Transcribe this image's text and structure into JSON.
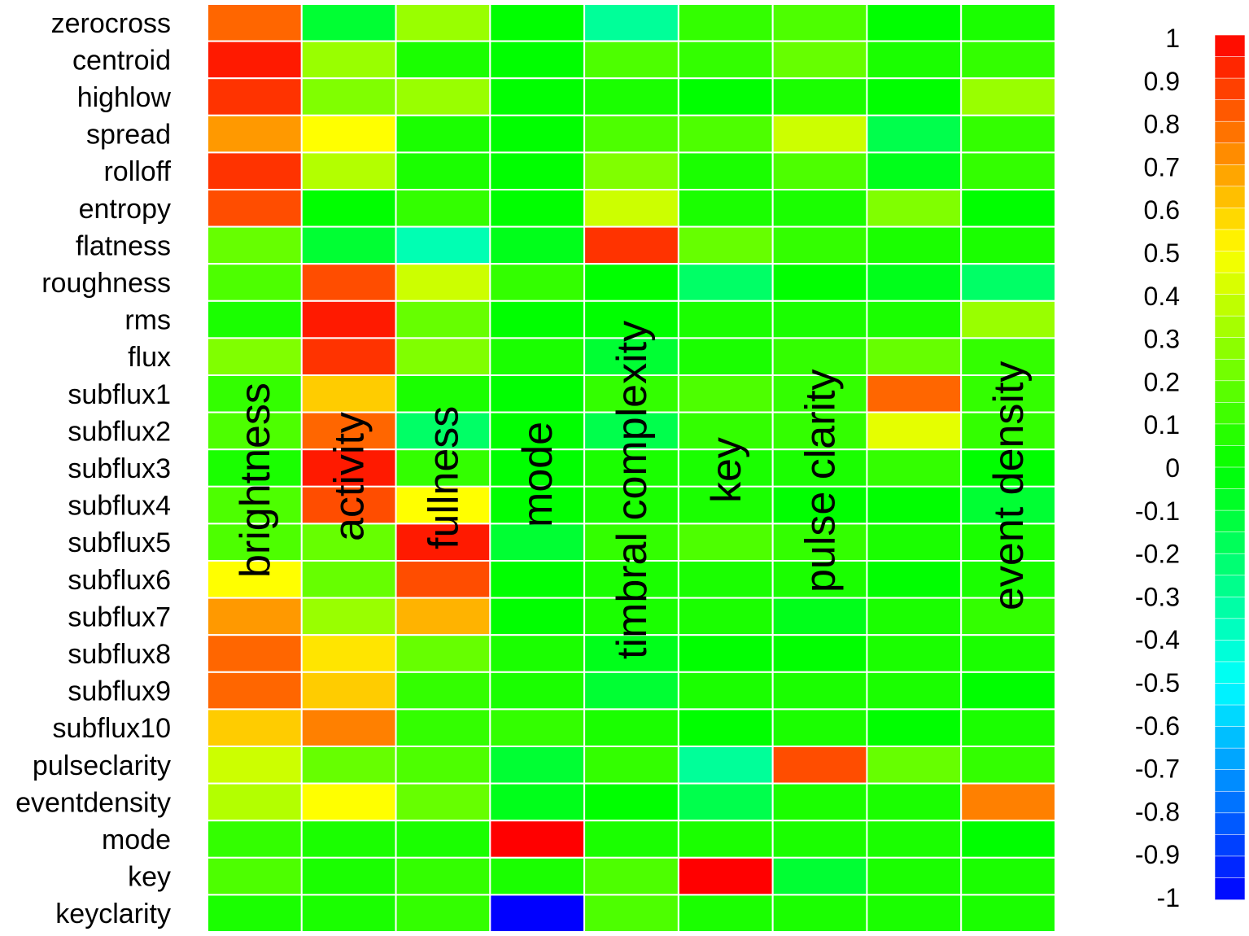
{
  "chart_data": {
    "type": "heatmap",
    "rows": [
      "zerocross",
      "centroid",
      "highlow",
      "spread",
      "rolloff",
      "entropy",
      "flatness",
      "roughness",
      "rms",
      "flux",
      "subflux1",
      "subflux2",
      "subflux3",
      "subflux4",
      "subflux5",
      "subflux6",
      "subflux7",
      "subflux8",
      "subflux9",
      "subflux10",
      "pulseclarity",
      "eventdensity",
      "mode",
      "key",
      "keyclarity"
    ],
    "columns": [
      "brightness",
      "activity",
      "fullness",
      "mode",
      "timbral complexity",
      "key",
      "pulse clarity",
      "",
      "event density"
    ],
    "values": [
      [
        0.8,
        -0.1,
        0.3,
        0.0,
        -0.3,
        0.1,
        0.15,
        0.0,
        0.05
      ],
      [
        0.95,
        0.3,
        0.05,
        0.0,
        0.15,
        0.1,
        0.2,
        0.05,
        0.1
      ],
      [
        0.9,
        0.25,
        0.3,
        0.0,
        0.05,
        0.0,
        0.05,
        0.0,
        0.3
      ],
      [
        0.7,
        0.5,
        0.05,
        0.0,
        0.15,
        0.15,
        0.4,
        -0.15,
        0.1
      ],
      [
        0.9,
        0.35,
        0.05,
        0.0,
        0.25,
        0.05,
        0.15,
        -0.05,
        0.1
      ],
      [
        0.85,
        0.0,
        0.1,
        0.0,
        0.4,
        0.05,
        0.05,
        0.25,
        0.0
      ],
      [
        0.2,
        -0.1,
        -0.35,
        -0.05,
        0.9,
        0.2,
        0.1,
        0.05,
        0.05
      ],
      [
        0.15,
        0.85,
        0.4,
        0.1,
        0.0,
        -0.2,
        0.0,
        -0.05,
        -0.2
      ],
      [
        0.05,
        0.95,
        0.2,
        0.0,
        0.0,
        0.05,
        0.05,
        0.05,
        0.3
      ],
      [
        0.25,
        0.9,
        0.25,
        0.05,
        -0.1,
        0.05,
        0.1,
        0.2,
        0.1
      ],
      [
        0.1,
        0.6,
        0.05,
        0.0,
        0.1,
        0.15,
        0.1,
        0.8,
        0.1
      ],
      [
        0.15,
        0.8,
        -0.2,
        0.0,
        -0.15,
        0.1,
        0.1,
        0.45,
        0.1
      ],
      [
        0.05,
        0.95,
        0.1,
        0.0,
        0.05,
        0.05,
        0.05,
        0.1,
        0.0
      ],
      [
        0.15,
        0.85,
        0.5,
        0.0,
        0.05,
        0.05,
        0.0,
        0.0,
        -0.1
      ],
      [
        0.15,
        0.2,
        0.95,
        -0.1,
        0.1,
        0.15,
        0.1,
        0.05,
        0.05
      ],
      [
        0.5,
        0.2,
        0.85,
        0.0,
        0.05,
        0.05,
        0.05,
        0.0,
        0.05
      ],
      [
        0.7,
        0.3,
        0.65,
        0.0,
        0.05,
        0.05,
        -0.05,
        0.05,
        0.1
      ],
      [
        0.8,
        0.55,
        0.2,
        0.05,
        -0.05,
        0.0,
        0.0,
        0.05,
        0.05
      ],
      [
        0.8,
        0.6,
        0.1,
        0.05,
        -0.1,
        0.05,
        0.05,
        0.05,
        0.0
      ],
      [
        0.6,
        0.75,
        0.1,
        0.1,
        0.05,
        0.0,
        0.05,
        0.0,
        0.05
      ],
      [
        0.4,
        0.2,
        0.15,
        -0.1,
        0.1,
        -0.3,
        0.85,
        0.2,
        0.1
      ],
      [
        0.35,
        0.5,
        0.2,
        -0.05,
        0.0,
        -0.15,
        0.05,
        0.05,
        0.75
      ],
      [
        0.1,
        0.05,
        0.05,
        1.0,
        0.05,
        0.05,
        0.05,
        0.05,
        0.0
      ],
      [
        0.15,
        0.05,
        0.1,
        0.05,
        0.15,
        1.0,
        -0.1,
        0.05,
        0.05
      ],
      [
        0.05,
        0.05,
        0.1,
        -1.0,
        0.15,
        0.05,
        0.05,
        0.05,
        0.05
      ]
    ],
    "colorbar": {
      "ticks": [
        "1",
        "0.9",
        "0.8",
        "0.7",
        "0.6",
        "0.5",
        "0.4",
        "0.3",
        "0.2",
        "0.1",
        "0",
        "-0.1",
        "-0.2",
        "-0.3",
        "-0.4",
        "-0.5",
        "-0.6",
        "-0.7",
        "-0.8",
        "-0.9",
        "-1"
      ],
      "range": [
        -1,
        1
      ],
      "levels": 40,
      "colors": [
        "#ff0000",
        "#ffff00",
        "#00ff00",
        "#00ffff",
        "#0000ff"
      ]
    }
  }
}
